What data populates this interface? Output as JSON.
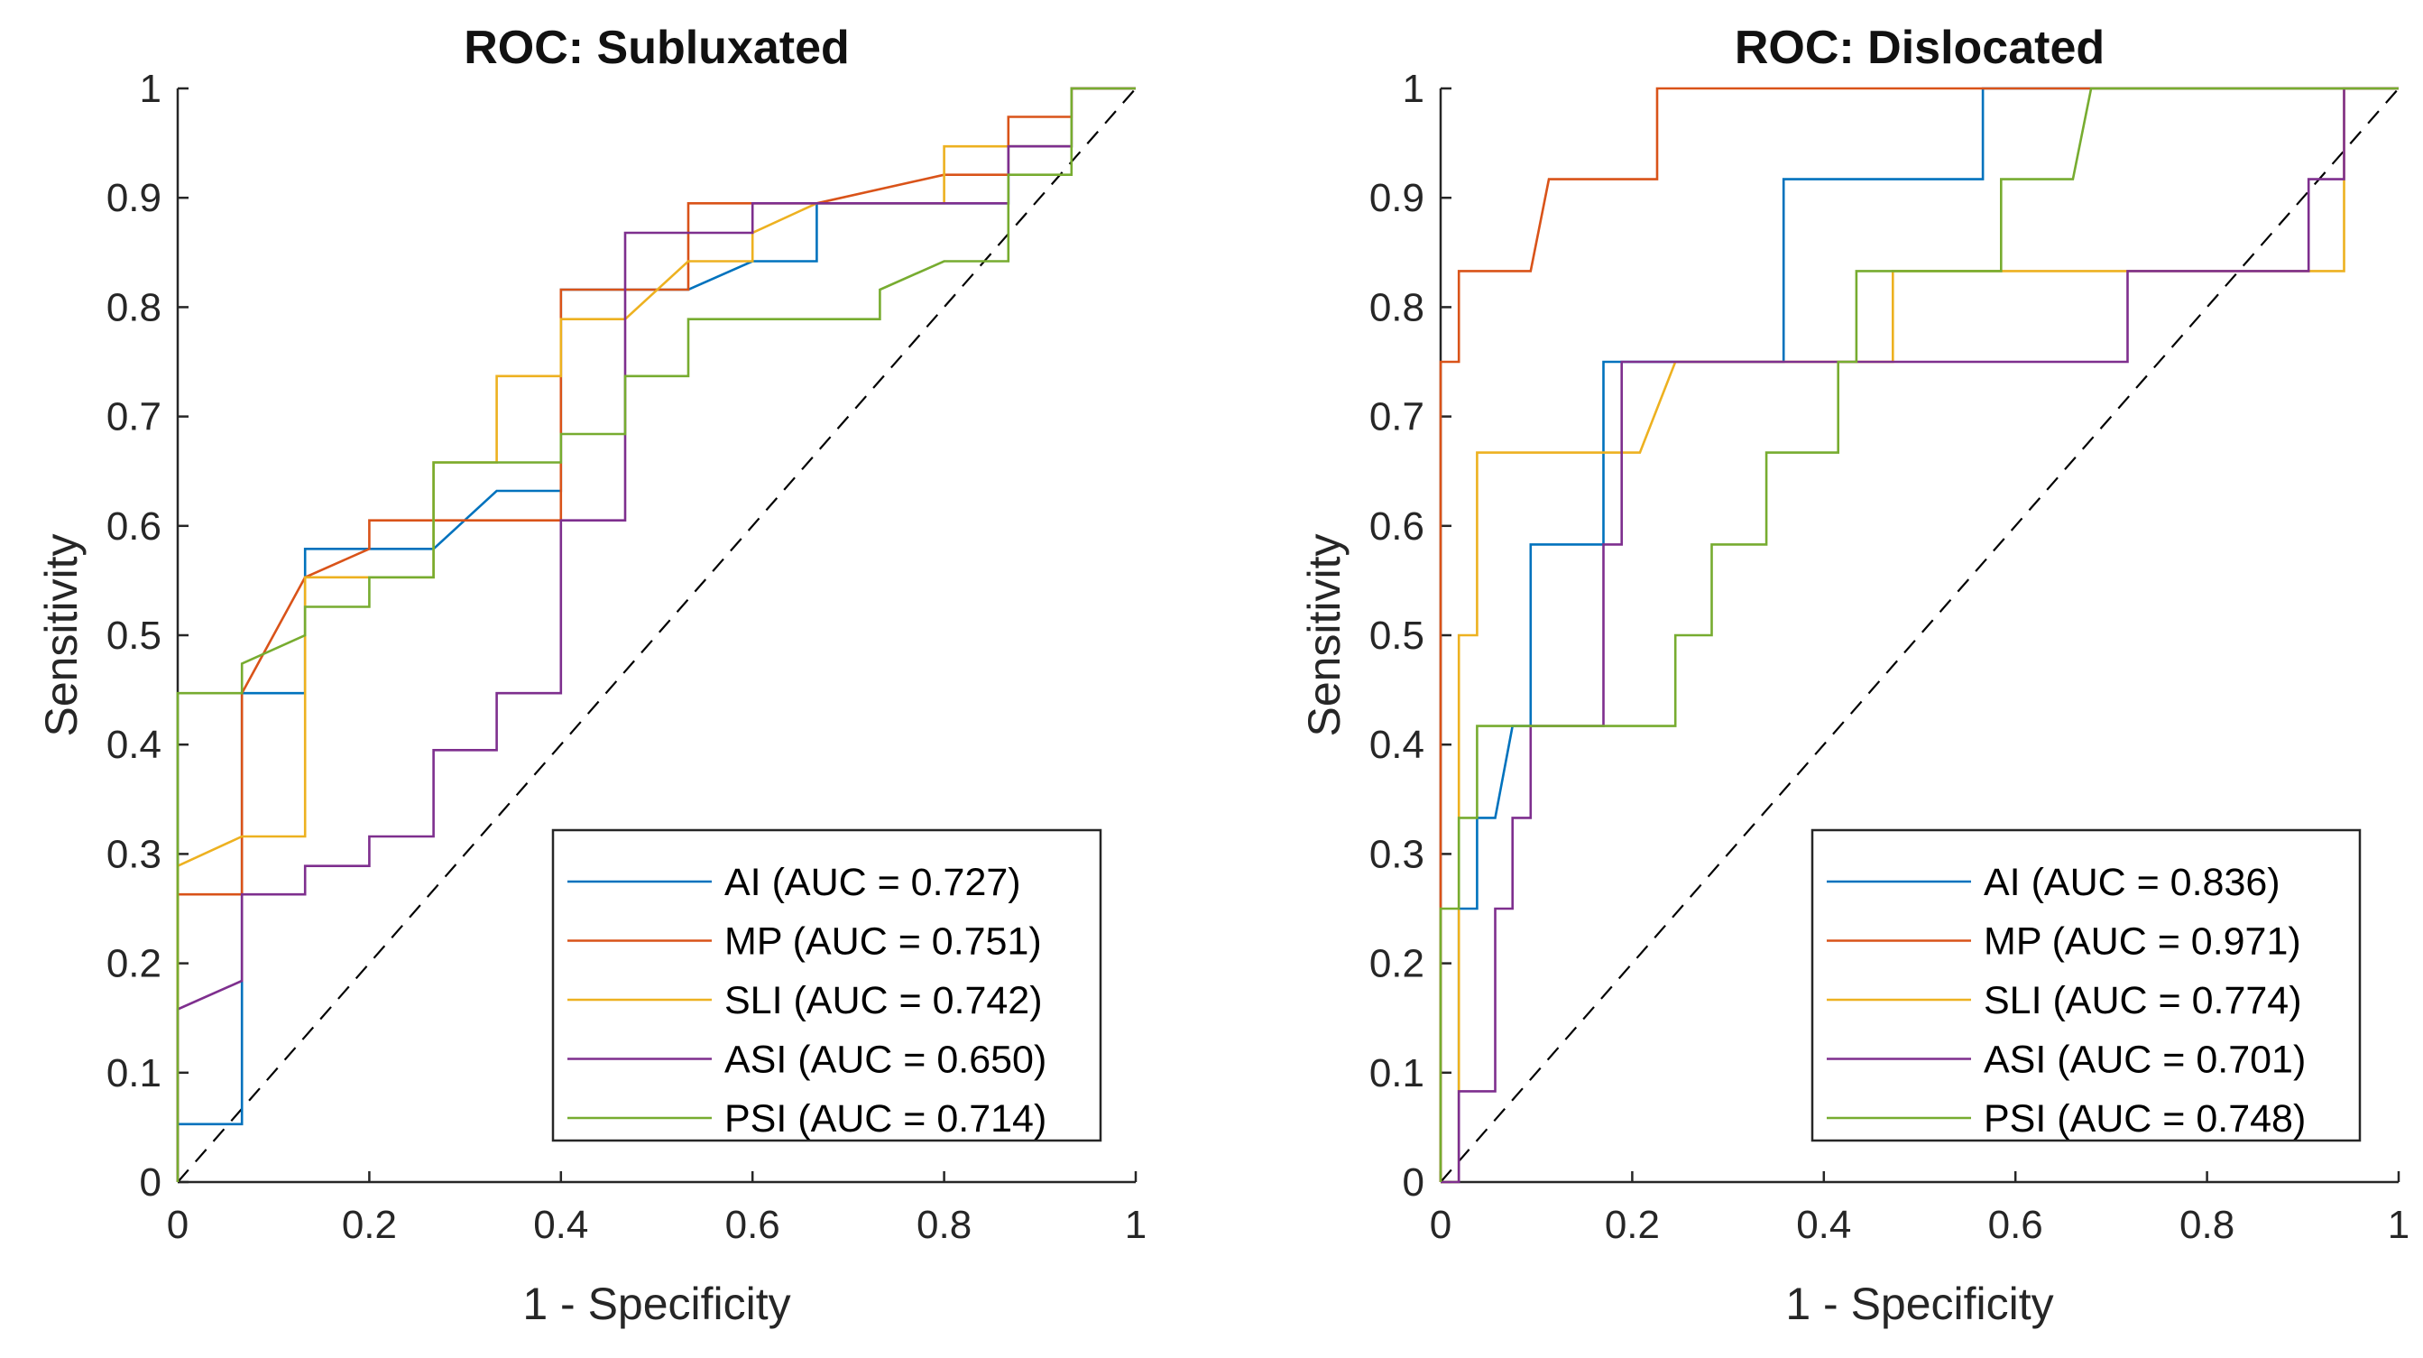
{
  "chart_data": [
    {
      "type": "line",
      "title": "ROC: Subluxated",
      "xlabel": "1 - Specificity",
      "ylabel": "Sensitivity",
      "xlim": [
        0,
        1
      ],
      "ylim": [
        0,
        1
      ],
      "xticks": [
        "0",
        "0.2",
        "0.4",
        "0.6",
        "0.8",
        "1"
      ],
      "yticks": [
        "0",
        "0.1",
        "0.2",
        "0.3",
        "0.4",
        "0.5",
        "0.6",
        "0.7",
        "0.8",
        "0.9",
        "1"
      ],
      "legend_position": "bottom-right",
      "reference_line": "diagonal dashed",
      "series": [
        {
          "name": "AI (AUC = 0.727)",
          "color": "#0072BD",
          "points": [
            [
              0,
              0
            ],
            [
              0,
              0.053
            ],
            [
              0.067,
              0.053
            ],
            [
              0.067,
              0.447
            ],
            [
              0.133,
              0.447
            ],
            [
              0.133,
              0.579
            ],
            [
              0.267,
              0.579
            ],
            [
              0.333,
              0.632
            ],
            [
              0.4,
              0.632
            ],
            [
              0.4,
              0.816
            ],
            [
              0.533,
              0.816
            ],
            [
              0.6,
              0.842
            ],
            [
              0.667,
              0.842
            ],
            [
              0.667,
              0.895
            ],
            [
              0.867,
              0.895
            ],
            [
              0.867,
              0.947
            ],
            [
              0.933,
              0.947
            ],
            [
              0.933,
              1
            ],
            [
              1,
              1
            ]
          ]
        },
        {
          "name": "MP (AUC = 0.751)",
          "color": "#D95319",
          "points": [
            [
              0,
              0
            ],
            [
              0,
              0.263
            ],
            [
              0.067,
              0.263
            ],
            [
              0.067,
              0.447
            ],
            [
              0.133,
              0.553
            ],
            [
              0.2,
              0.579
            ],
            [
              0.2,
              0.605
            ],
            [
              0.4,
              0.605
            ],
            [
              0.4,
              0.816
            ],
            [
              0.533,
              0.816
            ],
            [
              0.533,
              0.895
            ],
            [
              0.667,
              0.895
            ],
            [
              0.8,
              0.921
            ],
            [
              0.867,
              0.921
            ],
            [
              0.867,
              0.974
            ],
            [
              0.933,
              0.974
            ],
            [
              0.933,
              1
            ],
            [
              1,
              1
            ]
          ]
        },
        {
          "name": "SLI (AUC = 0.742)",
          "color": "#EDB120",
          "points": [
            [
              0,
              0
            ],
            [
              0,
              0.289
            ],
            [
              0.067,
              0.316
            ],
            [
              0.133,
              0.316
            ],
            [
              0.133,
              0.553
            ],
            [
              0.267,
              0.553
            ],
            [
              0.267,
              0.658
            ],
            [
              0.333,
              0.658
            ],
            [
              0.333,
              0.737
            ],
            [
              0.4,
              0.737
            ],
            [
              0.4,
              0.789
            ],
            [
              0.467,
              0.789
            ],
            [
              0.533,
              0.842
            ],
            [
              0.6,
              0.842
            ],
            [
              0.6,
              0.868
            ],
            [
              0.667,
              0.895
            ],
            [
              0.8,
              0.895
            ],
            [
              0.8,
              0.947
            ],
            [
              0.933,
              0.947
            ],
            [
              0.933,
              1
            ],
            [
              1,
              1
            ]
          ]
        },
        {
          "name": "ASI (AUC = 0.650)",
          "color": "#7E2F8E",
          "points": [
            [
              0,
              0
            ],
            [
              0,
              0.158
            ],
            [
              0.067,
              0.184
            ],
            [
              0.067,
              0.263
            ],
            [
              0.133,
              0.263
            ],
            [
              0.133,
              0.289
            ],
            [
              0.2,
              0.289
            ],
            [
              0.2,
              0.316
            ],
            [
              0.267,
              0.316
            ],
            [
              0.267,
              0.395
            ],
            [
              0.333,
              0.395
            ],
            [
              0.333,
              0.447
            ],
            [
              0.4,
              0.447
            ],
            [
              0.4,
              0.605
            ],
            [
              0.467,
              0.605
            ],
            [
              0.467,
              0.868
            ],
            [
              0.6,
              0.868
            ],
            [
              0.6,
              0.895
            ],
            [
              0.867,
              0.895
            ],
            [
              0.867,
              0.947
            ],
            [
              0.933,
              0.947
            ],
            [
              0.933,
              1
            ],
            [
              1,
              1
            ]
          ]
        },
        {
          "name": "PSI (AUC = 0.714)",
          "color": "#77AC30",
          "points": [
            [
              0,
              0
            ],
            [
              0,
              0.447
            ],
            [
              0.067,
              0.447
            ],
            [
              0.067,
              0.474
            ],
            [
              0.133,
              0.5
            ],
            [
              0.133,
              0.526
            ],
            [
              0.2,
              0.526
            ],
            [
              0.2,
              0.553
            ],
            [
              0.267,
              0.553
            ],
            [
              0.267,
              0.658
            ],
            [
              0.4,
              0.658
            ],
            [
              0.4,
              0.684
            ],
            [
              0.467,
              0.684
            ],
            [
              0.467,
              0.737
            ],
            [
              0.533,
              0.737
            ],
            [
              0.533,
              0.789
            ],
            [
              0.733,
              0.789
            ],
            [
              0.733,
              0.816
            ],
            [
              0.8,
              0.842
            ],
            [
              0.867,
              0.842
            ],
            [
              0.867,
              0.921
            ],
            [
              0.933,
              0.921
            ],
            [
              0.933,
              1
            ],
            [
              1,
              1
            ]
          ]
        }
      ]
    },
    {
      "type": "line",
      "title": "ROC: Dislocated",
      "xlabel": "1 - Specificity",
      "ylabel": "Sensitivity",
      "xlim": [
        0,
        1
      ],
      "ylim": [
        0,
        1
      ],
      "xticks": [
        "0",
        "0.2",
        "0.4",
        "0.6",
        "0.8",
        "1"
      ],
      "yticks": [
        "0",
        "0.1",
        "0.2",
        "0.3",
        "0.4",
        "0.5",
        "0.6",
        "0.7",
        "0.8",
        "0.9",
        "1"
      ],
      "legend_position": "bottom-right",
      "reference_line": "diagonal dashed",
      "series": [
        {
          "name": "AI (AUC = 0.836)",
          "color": "#0072BD",
          "points": [
            [
              0,
              0
            ],
            [
              0.019,
              0
            ],
            [
              0.019,
              0.25
            ],
            [
              0.038,
              0.25
            ],
            [
              0.038,
              0.333
            ],
            [
              0.057,
              0.333
            ],
            [
              0.075,
              0.417
            ],
            [
              0.094,
              0.417
            ],
            [
              0.094,
              0.583
            ],
            [
              0.17,
              0.583
            ],
            [
              0.17,
              0.75
            ],
            [
              0.358,
              0.75
            ],
            [
              0.358,
              0.917
            ],
            [
              0.566,
              0.917
            ],
            [
              0.566,
              1
            ],
            [
              1,
              1
            ]
          ]
        },
        {
          "name": "MP (AUC = 0.971)",
          "color": "#D95319",
          "points": [
            [
              0,
              0
            ],
            [
              0,
              0.75
            ],
            [
              0.019,
              0.75
            ],
            [
              0.019,
              0.833
            ],
            [
              0.094,
              0.833
            ],
            [
              0.113,
              0.917
            ],
            [
              0.226,
              0.917
            ],
            [
              0.226,
              1
            ],
            [
              1,
              1
            ]
          ]
        },
        {
          "name": "SLI (AUC = 0.774)",
          "color": "#EDB120",
          "points": [
            [
              0,
              0
            ],
            [
              0.019,
              0
            ],
            [
              0.019,
              0.5
            ],
            [
              0.038,
              0.5
            ],
            [
              0.038,
              0.667
            ],
            [
              0.208,
              0.667
            ],
            [
              0.245,
              0.75
            ],
            [
              0.472,
              0.75
            ],
            [
              0.472,
              0.833
            ],
            [
              0.943,
              0.833
            ],
            [
              0.943,
              1
            ],
            [
              1,
              1
            ]
          ]
        },
        {
          "name": "ASI (AUC = 0.701)",
          "color": "#7E2F8E",
          "points": [
            [
              0,
              0
            ],
            [
              0.019,
              0
            ],
            [
              0.019,
              0.083
            ],
            [
              0.057,
              0.083
            ],
            [
              0.057,
              0.25
            ],
            [
              0.075,
              0.25
            ],
            [
              0.075,
              0.333
            ],
            [
              0.094,
              0.333
            ],
            [
              0.094,
              0.417
            ],
            [
              0.17,
              0.417
            ],
            [
              0.17,
              0.583
            ],
            [
              0.189,
              0.583
            ],
            [
              0.189,
              0.75
            ],
            [
              0.717,
              0.75
            ],
            [
              0.717,
              0.833
            ],
            [
              0.906,
              0.833
            ],
            [
              0.906,
              0.917
            ],
            [
              0.943,
              0.917
            ],
            [
              0.943,
              1
            ],
            [
              1,
              1
            ]
          ]
        },
        {
          "name": "PSI (AUC = 0.748)",
          "color": "#77AC30",
          "points": [
            [
              0,
              0
            ],
            [
              0,
              0.25
            ],
            [
              0.019,
              0.25
            ],
            [
              0.019,
              0.333
            ],
            [
              0.038,
              0.333
            ],
            [
              0.038,
              0.417
            ],
            [
              0.245,
              0.417
            ],
            [
              0.245,
              0.5
            ],
            [
              0.283,
              0.5
            ],
            [
              0.283,
              0.583
            ],
            [
              0.34,
              0.583
            ],
            [
              0.34,
              0.667
            ],
            [
              0.415,
              0.667
            ],
            [
              0.415,
              0.75
            ],
            [
              0.434,
              0.75
            ],
            [
              0.434,
              0.833
            ],
            [
              0.585,
              0.833
            ],
            [
              0.585,
              0.917
            ],
            [
              0.66,
              0.917
            ],
            [
              0.679,
              1
            ],
            [
              1,
              1
            ]
          ]
        }
      ]
    }
  ]
}
